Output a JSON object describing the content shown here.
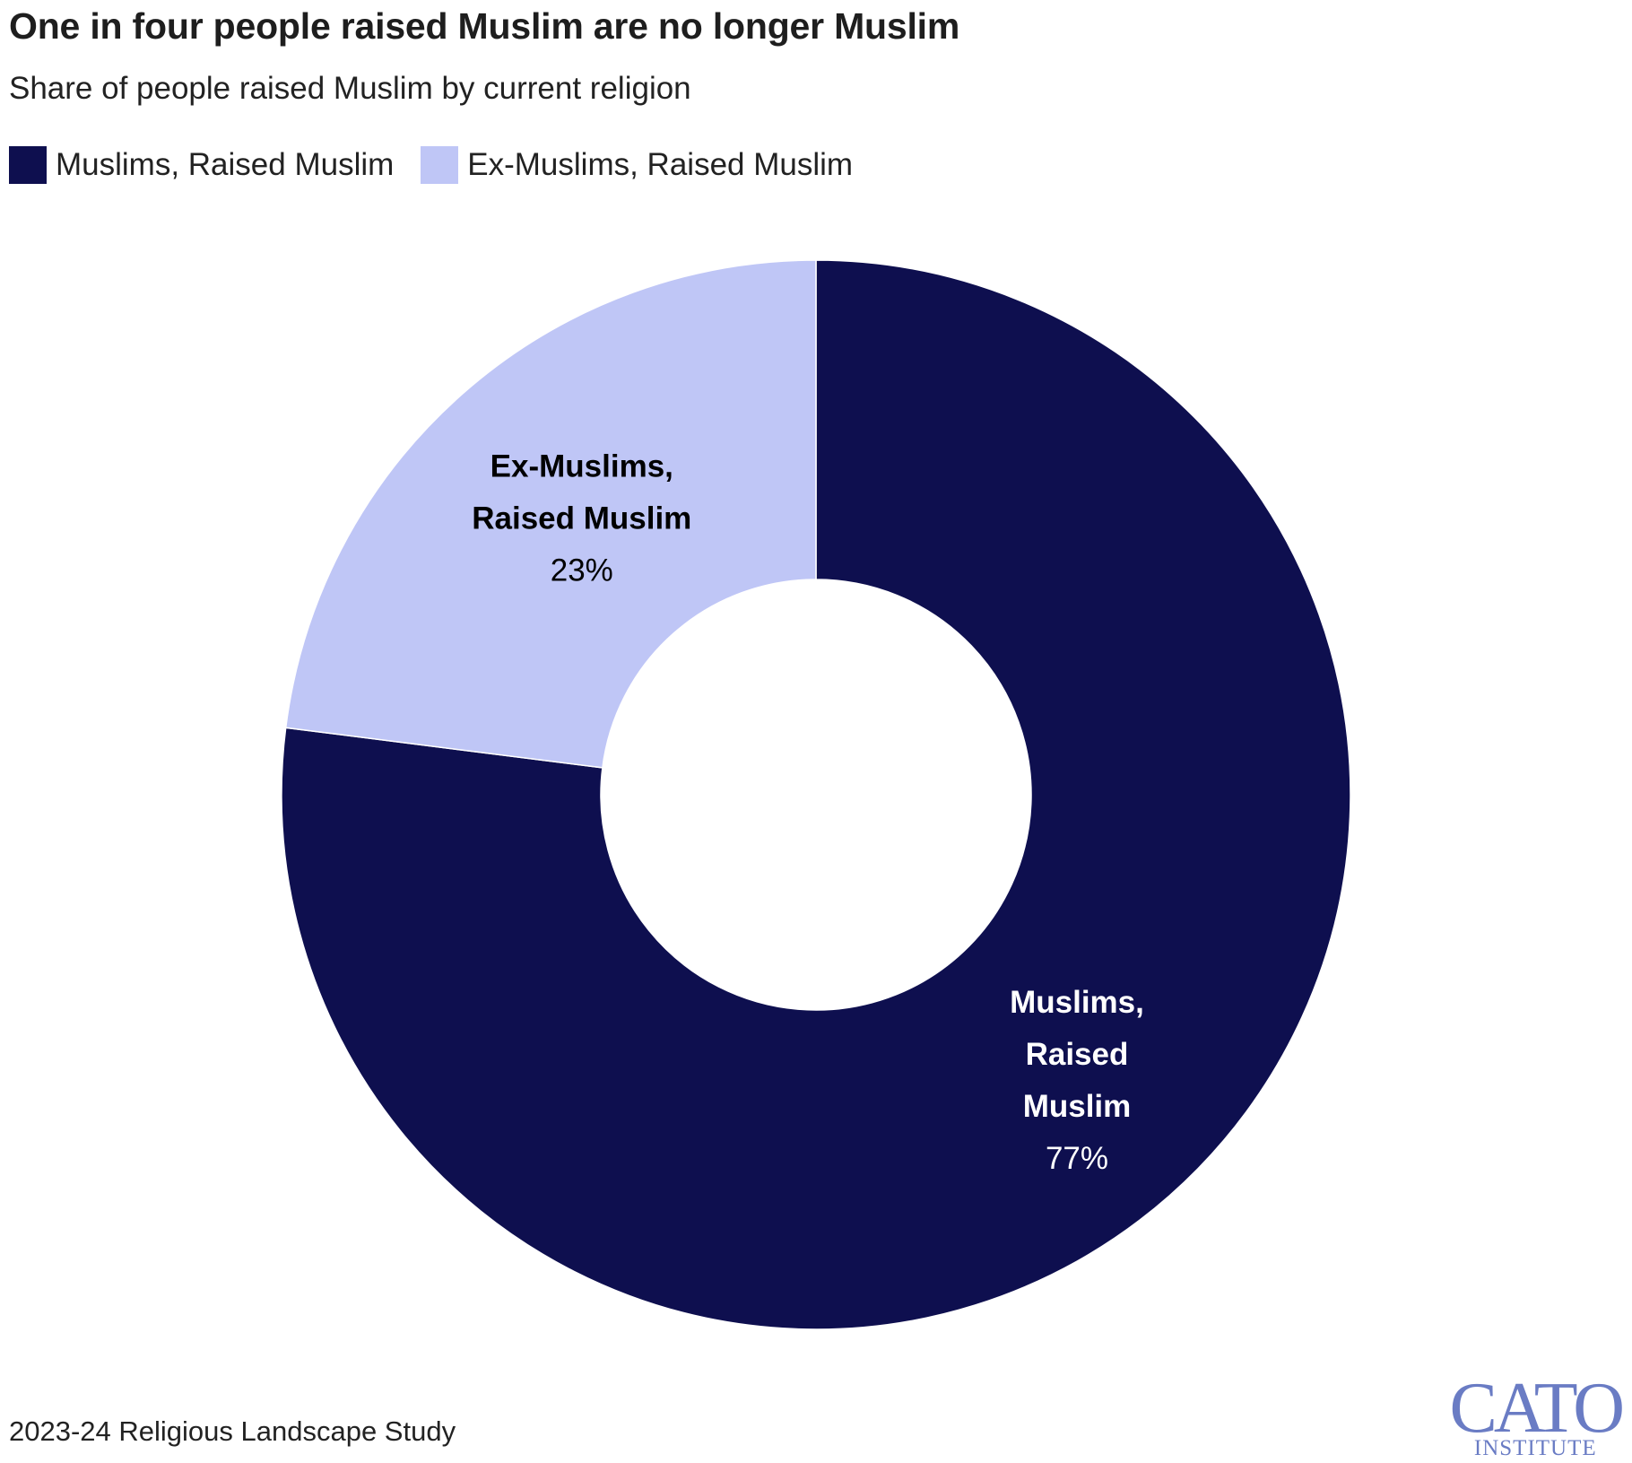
{
  "header": {
    "title": "One in four people raised Muslim are no longer Muslim",
    "subtitle": "Share of people raised Muslim by current religion"
  },
  "legend": {
    "items": [
      {
        "label": "Muslims, Raised Muslim",
        "color": "#0e0f4f"
      },
      {
        "label": "Ex-Muslims, Raised Muslim",
        "color": "#bfc6f6"
      }
    ]
  },
  "chart_data": {
    "type": "pie",
    "variant": "donut",
    "title": "One in four people raised Muslim are no longer Muslim",
    "subtitle": "Share of people raised Muslim by current religion",
    "legend_position": "top-left",
    "slices": [
      {
        "name": "Muslims, Raised Muslim",
        "value": 77,
        "value_label": "77%",
        "color": "#0e0f4f",
        "label_lines": [
          "Muslims,",
          "Raised",
          "Muslim"
        ],
        "label_color": "#ffffff"
      },
      {
        "name": "Ex-Muslims, Raised Muslim",
        "value": 23,
        "value_label": "23%",
        "color": "#bfc6f6",
        "label_lines": [
          "Ex-Muslims,",
          "Raised Muslim"
        ],
        "label_color": "#000000"
      }
    ]
  },
  "footer": {
    "source": "2023-24 Religious Landscape Study",
    "logo_main": "CATO",
    "logo_sub": "INSTITUTE"
  }
}
